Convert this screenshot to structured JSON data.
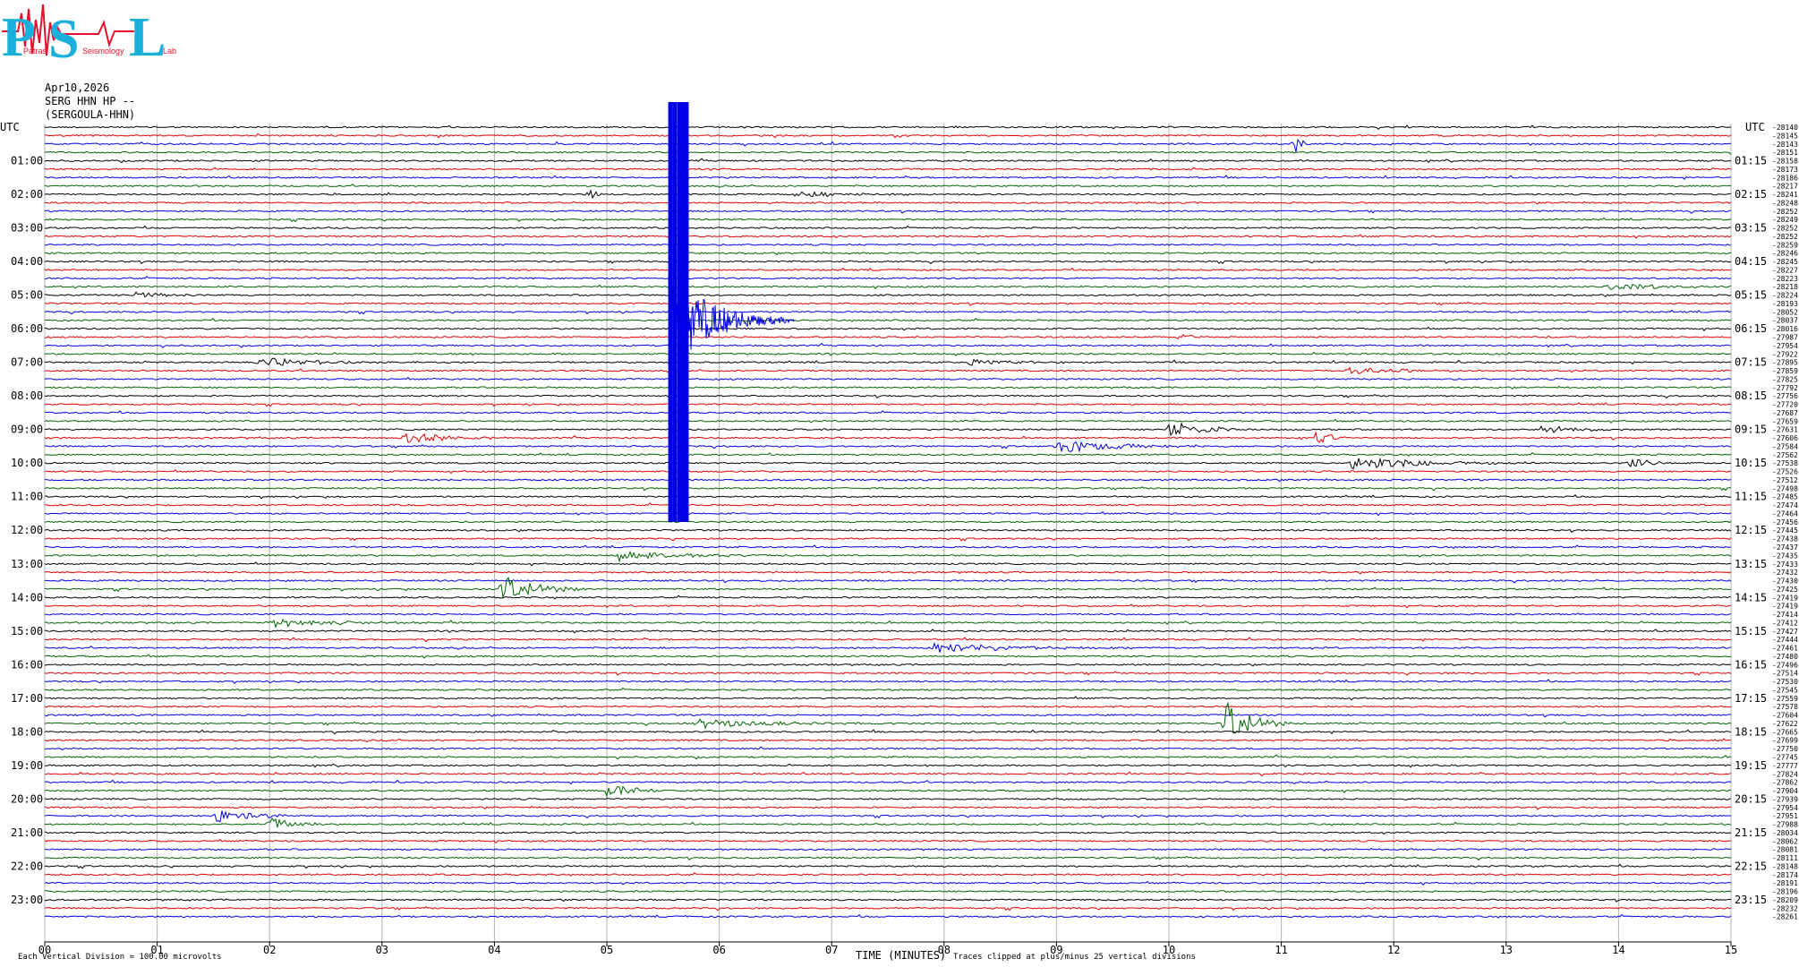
{
  "logo": {
    "letters": [
      "P",
      "S",
      "L"
    ],
    "words": [
      "Patras",
      "Seismology",
      "Lab"
    ],
    "colors": {
      "cyan": "#1ab0dc",
      "red": "#e8102a"
    }
  },
  "header": {
    "date": "Apr10,2026",
    "channel": "SERG HHN HP --",
    "station": "(SERGOULA-HHN)",
    "utc_left": "UTC",
    "utc_right": "UTC"
  },
  "footer": {
    "vertical_division": "Each Vertical Division =  100.00 microvolts",
    "xlabel": "TIME (MINUTES)",
    "clip_note": "Traces clipped at plus/minus 25 vertical divisions"
  },
  "chart_data": {
    "type": "line",
    "title": "",
    "xlabel": "TIME (MINUTES)",
    "ylabel": "",
    "xlim": [
      0,
      15
    ],
    "x_ticks": [
      "00",
      "01",
      "02",
      "03",
      "04",
      "05",
      "06",
      "07",
      "08",
      "09",
      "10",
      "11",
      "12",
      "13",
      "14",
      "15"
    ],
    "grid": true,
    "rows_per_hour": 4,
    "row_colors": [
      "#000000",
      "#e00000",
      "#0000e6",
      "#006400"
    ],
    "left_labels": [
      "01:00",
      "02:00",
      "03:00",
      "04:00",
      "05:00",
      "06:00",
      "07:00",
      "08:00",
      "09:00",
      "10:00",
      "11:00",
      "12:00",
      "13:00",
      "14:00",
      "15:00",
      "16:00",
      "17:00",
      "18:00",
      "19:00",
      "20:00",
      "21:00",
      "22:00",
      "23:00"
    ],
    "right_labels": [
      "01:15",
      "02:15",
      "03:15",
      "04:15",
      "05:15",
      "06:15",
      "07:15",
      "08:15",
      "09:15",
      "10:15",
      "11:15",
      "12:15",
      "13:15",
      "14:15",
      "15:15",
      "16:15",
      "17:15",
      "18:15",
      "19:15",
      "20:15",
      "21:15",
      "22:15",
      "23:15"
    ],
    "offsets": [
      "-28140",
      "-28145",
      "-28143",
      "-28151",
      "-28158",
      "-28173",
      "-28186",
      "-28217",
      "-28241",
      "-28248",
      "-28252",
      "-28249",
      "-28252",
      "-28252",
      "-28259",
      "-28246",
      "-28245",
      "-28227",
      "-28223",
      "-28218",
      "-28224",
      "-28193",
      "-28052",
      "-28037",
      "-28016",
      "-27987",
      "-27954",
      "-27922",
      "-27895",
      "-27859",
      "-27825",
      "-27792",
      "-27756",
      "-27720",
      "-27687",
      "-27659",
      "-27631",
      "-27606",
      "-27584",
      "-27562",
      "-27538",
      "-27526",
      "-27512",
      "-27498",
      "-27485",
      "-27474",
      "-27464",
      "-27456",
      "-27445",
      "-27438",
      "-27437",
      "-27435",
      "-27433",
      "-27432",
      "-27430",
      "-27425",
      "-27419",
      "-27419",
      "-27414",
      "-27412",
      "-27427",
      "-27444",
      "-27461",
      "-27480",
      "-27496",
      "-27514",
      "-27530",
      "-27545",
      "-27559",
      "-27578",
      "-27604",
      "-27622",
      "-27665",
      "-27699",
      "-27750",
      "-27745",
      "-27777",
      "-27824",
      "-27862",
      "-27904",
      "-27939",
      "-27954",
      "-27951",
      "-27988",
      "-28034",
      "-28062",
      "-28081",
      "-28111",
      "-28148",
      "-28174",
      "-28191",
      "-28196",
      "-28209",
      "-28232",
      "-28261"
    ],
    "events": [
      {
        "row": 2,
        "minute": 11.1,
        "amp": 12,
        "dur": 0.05
      },
      {
        "row": 8,
        "minute": 4.85,
        "amp": 6,
        "dur": 0.05
      },
      {
        "row": 8,
        "minute": 6.7,
        "amp": 3,
        "dur": 0.5
      },
      {
        "row": 19,
        "minute": 13.9,
        "amp": 4,
        "dur": 0.5
      },
      {
        "row": 20,
        "minute": 0.8,
        "amp": 4,
        "dur": 0.2
      },
      {
        "row": 25,
        "minute": 10.1,
        "amp": 5,
        "dur": 0.1
      },
      {
        "row": 28,
        "minute": 1.9,
        "amp": 5,
        "dur": 0.6
      },
      {
        "row": 28,
        "minute": 8.2,
        "amp": 4,
        "dur": 0.4
      },
      {
        "row": 29,
        "minute": 11.6,
        "amp": 5,
        "dur": 0.4
      },
      {
        "row": 36,
        "minute": 10.0,
        "amp": 10,
        "dur": 0.3
      },
      {
        "row": 36,
        "minute": 13.3,
        "amp": 6,
        "dur": 0.3
      },
      {
        "row": 37,
        "minute": 3.2,
        "amp": 6,
        "dur": 0.4
      },
      {
        "row": 37,
        "minute": 11.3,
        "amp": 10,
        "dur": 0.1
      },
      {
        "row": 38,
        "minute": 9.0,
        "amp": 8,
        "dur": 0.5
      },
      {
        "row": 40,
        "minute": 11.6,
        "amp": 8,
        "dur": 0.6
      },
      {
        "row": 40,
        "minute": 14.1,
        "amp": 12,
        "dur": 0.1
      },
      {
        "row": 51,
        "minute": 5.1,
        "amp": 6,
        "dur": 0.5
      },
      {
        "row": 55,
        "minute": 4.05,
        "amp": 16,
        "dur": 0.3
      },
      {
        "row": 59,
        "minute": 2.0,
        "amp": 5,
        "dur": 0.6
      },
      {
        "row": 62,
        "minute": 7.9,
        "amp": 6,
        "dur": 0.7
      },
      {
        "row": 71,
        "minute": 10.5,
        "amp": 26,
        "dur": 0.2
      },
      {
        "row": 71,
        "minute": 5.8,
        "amp": 5,
        "dur": 0.6
      },
      {
        "row": 79,
        "minute": 5.0,
        "amp": 10,
        "dur": 0.2
      },
      {
        "row": 82,
        "minute": 1.5,
        "amp": 8,
        "dur": 0.3
      },
      {
        "row": 83,
        "minute": 2.0,
        "amp": 8,
        "dur": 0.2
      }
    ],
    "big_quake": {
      "row_start": 22,
      "row_end": 24,
      "minute": 5.55,
      "clip_top_row": 0,
      "clip_bottom_row": 47
    }
  }
}
